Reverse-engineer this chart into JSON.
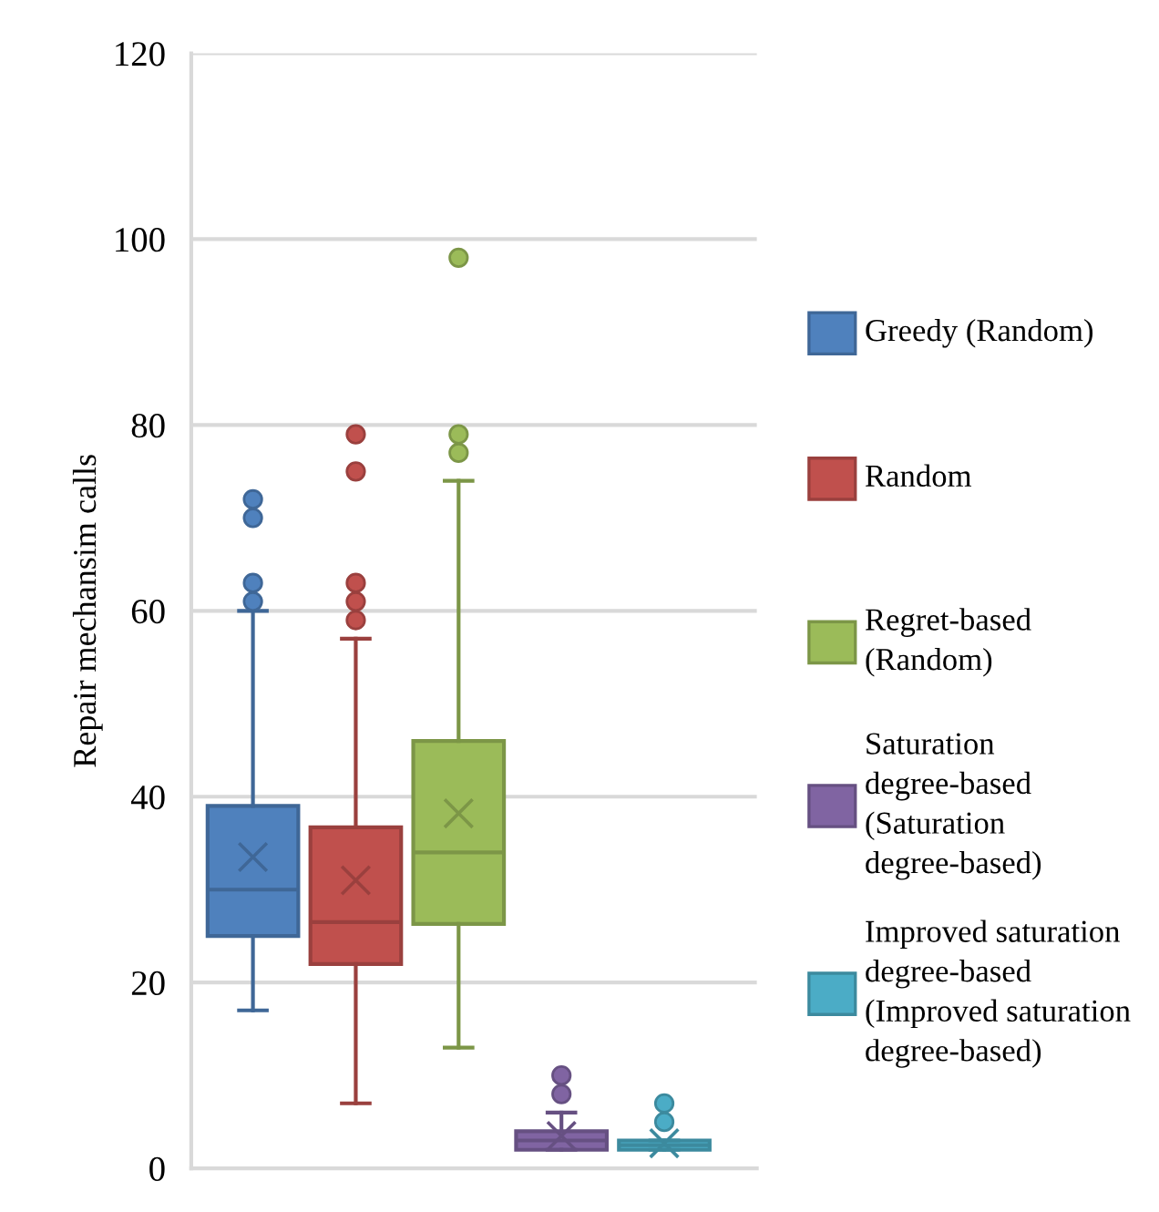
{
  "chart_data": {
    "type": "box",
    "ylabel": "Repair mechansim calls",
    "categories": [
      null
    ],
    "ylim": [
      0,
      120
    ],
    "yticks": [
      0,
      20,
      40,
      60,
      80,
      100,
      120
    ],
    "grid": "y",
    "legend": "right",
    "series": [
      {
        "name": "Greedy (Random)",
        "color": "#4f81bd",
        "boxes": [
          {
            "low": 17,
            "q1": 25,
            "median": 30,
            "q3": 39,
            "high": 60,
            "mean": 33.5,
            "outliers": [
              61,
              63,
              70,
              72
            ]
          }
        ]
      },
      {
        "name": "Random",
        "color": "#c0504d",
        "boxes": [
          {
            "low": 7,
            "q1": 22,
            "median": 26.5,
            "q3": 36.7,
            "high": 57,
            "mean": 31,
            "outliers": [
              59,
              61,
              63,
              75,
              79
            ]
          }
        ]
      },
      {
        "name": "Regret-based (Random)",
        "color": "#9bbb59",
        "boxes": [
          {
            "low": 13,
            "q1": 26.3,
            "median": 34,
            "q3": 46,
            "high": 74,
            "mean": 38.2,
            "outliers": [
              77,
              79,
              98
            ]
          }
        ]
      },
      {
        "name": "Saturation degree-based (Saturation degree-based)",
        "color": "#8064a2",
        "boxes": [
          {
            "low": 2,
            "q1": 2,
            "median": 3,
            "q3": 4,
            "high": 6,
            "mean": 3.5,
            "outliers": [
              8,
              10
            ]
          }
        ]
      },
      {
        "name": "Improved saturation degree-based (Improved saturation degree-based)",
        "color": "#4bacc6",
        "boxes": [
          {
            "low": 2,
            "q1": 2,
            "median": 2.5,
            "q3": 3,
            "high": 3,
            "mean": 2.7,
            "outliers": [
              5,
              7
            ]
          }
        ]
      }
    ]
  }
}
